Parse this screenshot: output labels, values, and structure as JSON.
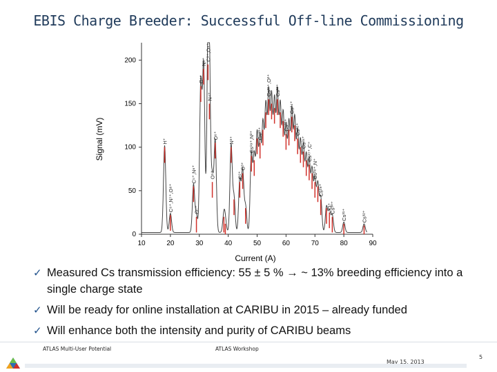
{
  "slide": {
    "title": "EBIS Charge Breeder: Successful Off-line Commissioning",
    "bullets": [
      "Measured Cs transmission efficiency: 55 ± 5 % → ~ 13% breeding efficiency into a single charge state",
      "Will be ready for online installation at CARIBU in 2015 – already funded",
      "Will enhance both the intensity and purity of CARIBU beams"
    ],
    "check_glyph": "✓",
    "footer_left": "ATLAS Multi-User Potential",
    "footer_mid": "ATLAS Workshop",
    "date": "May 15, 2013",
    "page_number": "5",
    "logo_icon": "triangle-logo-icon",
    "colors": {
      "title": "#1f3a5a",
      "trace": "#444444",
      "peak_highlight": "#d0302a",
      "check": "#1d4f8a"
    }
  },
  "chart_data": {
    "type": "line",
    "xlabel": "Current (A)",
    "ylabel": "Signal (mV)",
    "xlim": [
      10,
      90
    ],
    "ylim": [
      0,
      220
    ],
    "xticks": [
      10,
      20,
      30,
      40,
      50,
      60,
      70,
      80,
      90
    ],
    "yticks": [
      0,
      50,
      100,
      150,
      200
    ],
    "series": [
      {
        "x": [
          18,
          20,
          28,
          29,
          30.5,
          31.5,
          33,
          33.5,
          34.5,
          35.5,
          38.5,
          39,
          41,
          42,
          44,
          45,
          46,
          48,
          49,
          50,
          51,
          52,
          53,
          54,
          55,
          56,
          57,
          58,
          59,
          60,
          61,
          62,
          63,
          64,
          65,
          66,
          67,
          68,
          69,
          70,
          71,
          72,
          74,
          75,
          76,
          80,
          87
        ],
        "values": [
          100,
          22,
          55,
          20,
          170,
          190,
          195,
          150,
          60,
          105,
          20,
          12,
          100,
          40,
          60,
          70,
          30,
          90,
          85,
          110,
          105,
          120,
          140,
          155,
          150,
          145,
          155,
          140,
          130,
          115,
          120,
          135,
          125,
          110,
          100,
          95,
          85,
          80,
          70,
          60,
          55,
          40,
          30,
          25,
          20,
          12,
          10
        ]
      }
    ],
    "peak_labels": [
      {
        "x": 18,
        "y": 100,
        "text": "H⁺"
      },
      {
        "x": 20,
        "y": 22,
        "text": "C⁶⁺,N⁷⁺,O⁸⁺"
      },
      {
        "x": 28,
        "y": 55,
        "text": "C⁵⁺,N⁶⁺"
      },
      {
        "x": 29,
        "y": 20,
        "text": "O⁷⁺"
      },
      {
        "x": 30.5,
        "y": 170,
        "text": "C⁴⁺"
      },
      {
        "x": 31.5,
        "y": 190,
        "text": "N⁵⁺"
      },
      {
        "x": 33,
        "y": 195,
        "text": "C³⁺,O⁴⁺"
      },
      {
        "x": 33.5,
        "y": 150,
        "text": "N⁴⁺"
      },
      {
        "x": 34.5,
        "y": 60,
        "text": "O⁵⁺"
      },
      {
        "x": 35.5,
        "y": 105,
        "text": "O⁶⁺"
      },
      {
        "x": 41,
        "y": 100,
        "text": "N³⁺"
      },
      {
        "x": 44,
        "y": 60,
        "text": "C²⁺"
      },
      {
        "x": 45,
        "y": 70,
        "text": "O³⁺"
      },
      {
        "x": 48,
        "y": 90,
        "text": "Cs¹⁹⁺,N²⁺"
      },
      {
        "x": 51,
        "y": 105,
        "text": "Cs²⁰⁺"
      },
      {
        "x": 54,
        "y": 155,
        "text": "Cs²¹⁺,O²⁺"
      },
      {
        "x": 57,
        "y": 155,
        "text": "Cs²²⁺"
      },
      {
        "x": 60,
        "y": 115,
        "text": "Cs²³⁺"
      },
      {
        "x": 62,
        "y": 135,
        "text": "Cs²⁴⁺"
      },
      {
        "x": 64,
        "y": 110,
        "text": "Cs²⁵⁺"
      },
      {
        "x": 66,
        "y": 95,
        "text": "Cs²⁶⁺"
      },
      {
        "x": 68,
        "y": 80,
        "text": "Cs²⁷⁺,C⁺"
      },
      {
        "x": 70,
        "y": 60,
        "text": "Cs²⁸⁺,N⁺"
      },
      {
        "x": 72,
        "y": 40,
        "text": "Cs²⁹⁺"
      },
      {
        "x": 75,
        "y": 25,
        "text": "O⁺"
      },
      {
        "x": 76,
        "y": 20,
        "text": "Cs³⁰⁺"
      },
      {
        "x": 80,
        "y": 12,
        "text": "Cs³¹⁺"
      },
      {
        "x": 87,
        "y": 10,
        "text": "Cs³²⁺"
      }
    ]
  }
}
